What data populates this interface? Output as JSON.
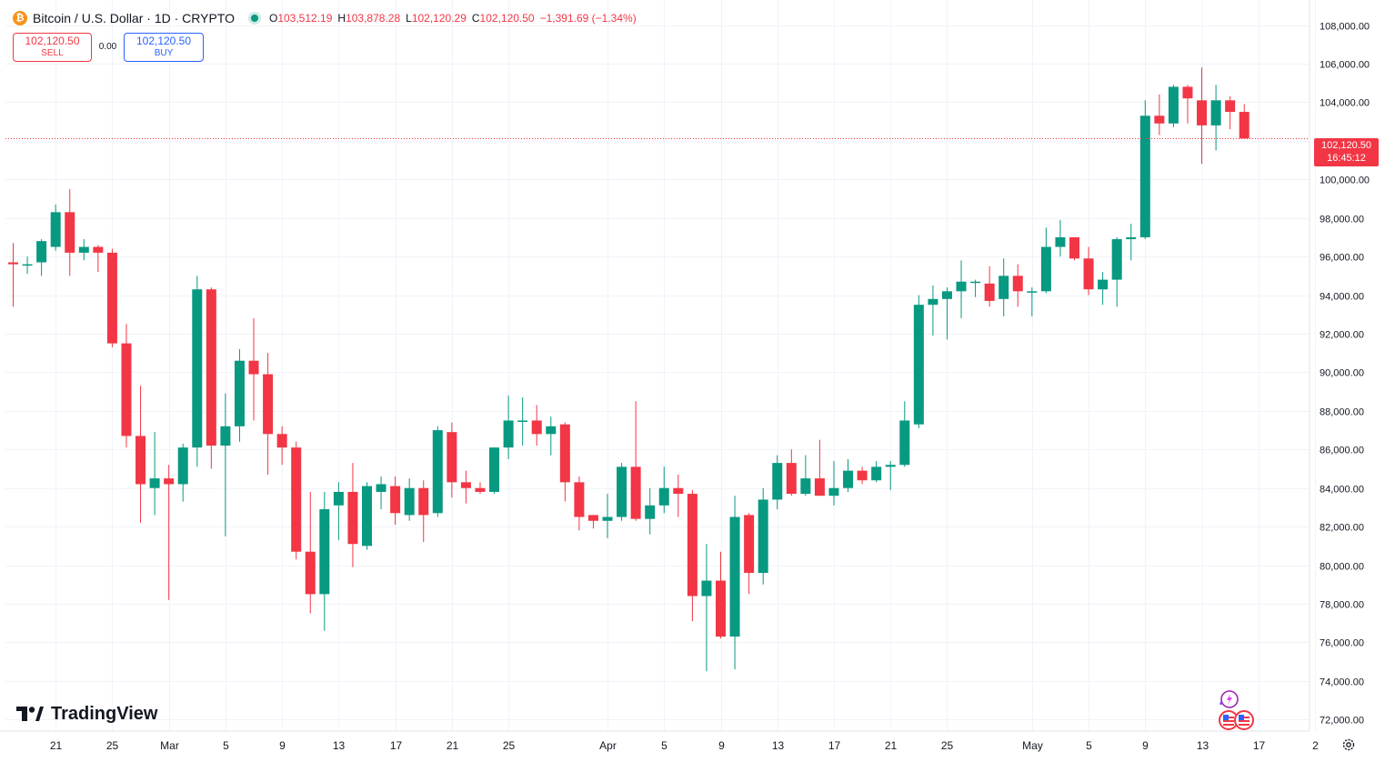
{
  "header": {
    "symbol_title": "Bitcoin / U.S. Dollar · 1D · CRYPTO",
    "btc_badge": "₿",
    "open_label": "O",
    "open_value": "103,512.19",
    "high_label": "H",
    "high_value": "103,878.28",
    "low_label": "L",
    "low_value": "102,120.29",
    "close_label": "C",
    "close_value": "102,120.50",
    "change_value": "−1,391.69 (−1.34%)"
  },
  "trade": {
    "sell_price": "102,120.50",
    "sell_label": "SELL",
    "spread": "0.00",
    "buy_price": "102,120.50",
    "buy_label": "BUY"
  },
  "price_tag": {
    "price": "102,120.50",
    "countdown": "16:45:12"
  },
  "branding": {
    "logo_text": "TradingView"
  },
  "colors": {
    "up": "#089981",
    "down": "#f23645",
    "grid": "#f0f3fa",
    "axis_text": "#131722",
    "price_line": "#f23645"
  },
  "chart_data": {
    "type": "candlestick",
    "title": "Bitcoin / U.S. Dollar · 1D · CRYPTO",
    "ylim": [
      71400,
      109300
    ],
    "y_ticks": [
      72000,
      74000,
      76000,
      78000,
      80000,
      82000,
      84000,
      86000,
      88000,
      90000,
      92000,
      94000,
      96000,
      98000,
      100000,
      102000,
      104000,
      106000,
      108000
    ],
    "x_labels": [
      {
        "index": 3,
        "label": "21"
      },
      {
        "index": 7,
        "label": "25"
      },
      {
        "index": 11,
        "label": "Mar"
      },
      {
        "index": 15,
        "label": "5"
      },
      {
        "index": 19,
        "label": "9"
      },
      {
        "index": 23,
        "label": "13"
      },
      {
        "index": 27,
        "label": "17"
      },
      {
        "index": 31,
        "label": "21"
      },
      {
        "index": 35,
        "label": "25"
      },
      {
        "index": 42,
        "label": "Apr"
      },
      {
        "index": 46,
        "label": "5"
      },
      {
        "index": 50,
        "label": "9"
      },
      {
        "index": 54,
        "label": "13"
      },
      {
        "index": 58,
        "label": "17"
      },
      {
        "index": 62,
        "label": "21"
      },
      {
        "index": 66,
        "label": "25"
      },
      {
        "index": 72,
        "label": "May"
      },
      {
        "index": 76,
        "label": "5"
      },
      {
        "index": 80,
        "label": "9"
      },
      {
        "index": 84,
        "label": "13"
      },
      {
        "index": 88,
        "label": "17"
      },
      {
        "index": 92,
        "label": "2"
      }
    ],
    "last_price": 102120.5,
    "candles": [
      {
        "o": 95700,
        "h": 96700,
        "l": 93400,
        "c": 95600
      },
      {
        "o": 95600,
        "h": 96000,
        "l": 95100,
        "c": 95600
      },
      {
        "o": 95700,
        "h": 96900,
        "l": 95000,
        "c": 96800
      },
      {
        "o": 96500,
        "h": 98700,
        "l": 96300,
        "c": 98300
      },
      {
        "o": 98300,
        "h": 99500,
        "l": 95000,
        "c": 96200
      },
      {
        "o": 96200,
        "h": 96900,
        "l": 95800,
        "c": 96500
      },
      {
        "o": 96500,
        "h": 96600,
        "l": 95200,
        "c": 96200
      },
      {
        "o": 96200,
        "h": 96400,
        "l": 91300,
        "c": 91500
      },
      {
        "o": 91500,
        "h": 92500,
        "l": 86100,
        "c": 86700
      },
      {
        "o": 86700,
        "h": 89300,
        "l": 82200,
        "c": 84200
      },
      {
        "o": 84000,
        "h": 86900,
        "l": 82600,
        "c": 84500
      },
      {
        "o": 84500,
        "h": 85200,
        "l": 78200,
        "c": 84200
      },
      {
        "o": 84200,
        "h": 86300,
        "l": 83300,
        "c": 86100
      },
      {
        "o": 86100,
        "h": 95000,
        "l": 85100,
        "c": 94300
      },
      {
        "o": 94300,
        "h": 94400,
        "l": 85000,
        "c": 86200
      },
      {
        "o": 86200,
        "h": 88900,
        "l": 81500,
        "c": 87200
      },
      {
        "o": 87200,
        "h": 91200,
        "l": 86400,
        "c": 90600
      },
      {
        "o": 90600,
        "h": 92800,
        "l": 87500,
        "c": 89900
      },
      {
        "o": 89900,
        "h": 91000,
        "l": 84700,
        "c": 86800
      },
      {
        "o": 86800,
        "h": 87200,
        "l": 85200,
        "c": 86100
      },
      {
        "o": 86100,
        "h": 86400,
        "l": 80300,
        "c": 80700
      },
      {
        "o": 80700,
        "h": 83800,
        "l": 77500,
        "c": 78500
      },
      {
        "o": 78500,
        "h": 83800,
        "l": 76600,
        "c": 82900
      },
      {
        "o": 83100,
        "h": 84300,
        "l": 81300,
        "c": 83800
      },
      {
        "o": 83800,
        "h": 85300,
        "l": 79900,
        "c": 81100
      },
      {
        "o": 81000,
        "h": 84300,
        "l": 80800,
        "c": 84100
      },
      {
        "o": 83800,
        "h": 84600,
        "l": 82900,
        "c": 84200
      },
      {
        "o": 84100,
        "h": 84600,
        "l": 82100,
        "c": 82700
      },
      {
        "o": 82600,
        "h": 84500,
        "l": 82300,
        "c": 84000
      },
      {
        "o": 84000,
        "h": 84400,
        "l": 81200,
        "c": 82600
      },
      {
        "o": 82700,
        "h": 87200,
        "l": 82500,
        "c": 87000
      },
      {
        "o": 86900,
        "h": 87400,
        "l": 83500,
        "c": 84300
      },
      {
        "o": 84300,
        "h": 84900,
        "l": 83200,
        "c": 84000
      },
      {
        "o": 84000,
        "h": 84300,
        "l": 83700,
        "c": 83800
      },
      {
        "o": 83800,
        "h": 86100,
        "l": 83700,
        "c": 86100
      },
      {
        "o": 86100,
        "h": 88800,
        "l": 85500,
        "c": 87500
      },
      {
        "o": 87500,
        "h": 88700,
        "l": 86200,
        "c": 87500
      },
      {
        "o": 87500,
        "h": 88300,
        "l": 86200,
        "c": 86800
      },
      {
        "o": 86800,
        "h": 87700,
        "l": 85700,
        "c": 87200
      },
      {
        "o": 87300,
        "h": 87400,
        "l": 83300,
        "c": 84300
      },
      {
        "o": 84300,
        "h": 84600,
        "l": 81800,
        "c": 82500
      },
      {
        "o": 82600,
        "h": 82600,
        "l": 81900,
        "c": 82300
      },
      {
        "o": 82300,
        "h": 83700,
        "l": 81400,
        "c": 82500
      },
      {
        "o": 82500,
        "h": 85300,
        "l": 82300,
        "c": 85100
      },
      {
        "o": 85100,
        "h": 88500,
        "l": 82300,
        "c": 82400
      },
      {
        "o": 82400,
        "h": 84000,
        "l": 81600,
        "c": 83100
      },
      {
        "o": 83100,
        "h": 85100,
        "l": 82700,
        "c": 84000
      },
      {
        "o": 84000,
        "h": 84700,
        "l": 82500,
        "c": 83700
      },
      {
        "o": 83700,
        "h": 83900,
        "l": 77100,
        "c": 78400
      },
      {
        "o": 78400,
        "h": 81100,
        "l": 74500,
        "c": 79200
      },
      {
        "o": 79200,
        "h": 80700,
        "l": 76200,
        "c": 76300
      },
      {
        "o": 76300,
        "h": 83600,
        "l": 74600,
        "c": 82500
      },
      {
        "o": 82600,
        "h": 82700,
        "l": 78500,
        "c": 79600
      },
      {
        "o": 79600,
        "h": 84000,
        "l": 79000,
        "c": 83400
      },
      {
        "o": 83400,
        "h": 85700,
        "l": 82900,
        "c": 85300
      },
      {
        "o": 85300,
        "h": 86000,
        "l": 83600,
        "c": 83700
      },
      {
        "o": 83700,
        "h": 85700,
        "l": 83600,
        "c": 84500
      },
      {
        "o": 84500,
        "h": 86500,
        "l": 83600,
        "c": 83600
      },
      {
        "o": 83600,
        "h": 85400,
        "l": 83100,
        "c": 84000
      },
      {
        "o": 84000,
        "h": 85500,
        "l": 83800,
        "c": 84900
      },
      {
        "o": 84900,
        "h": 85100,
        "l": 84200,
        "c": 84400
      },
      {
        "o": 84400,
        "h": 85400,
        "l": 84300,
        "c": 85100
      },
      {
        "o": 85100,
        "h": 85400,
        "l": 83900,
        "c": 85200
      },
      {
        "o": 85200,
        "h": 88500,
        "l": 85100,
        "c": 87500
      },
      {
        "o": 87300,
        "h": 94000,
        "l": 87100,
        "c": 93500
      },
      {
        "o": 93500,
        "h": 94500,
        "l": 91900,
        "c": 93800
      },
      {
        "o": 93800,
        "h": 94400,
        "l": 91700,
        "c": 94200
      },
      {
        "o": 94200,
        "h": 95800,
        "l": 92800,
        "c": 94700
      },
      {
        "o": 94700,
        "h": 94800,
        "l": 93900,
        "c": 94700
      },
      {
        "o": 94600,
        "h": 95500,
        "l": 93400,
        "c": 93700
      },
      {
        "o": 93800,
        "h": 95900,
        "l": 92900,
        "c": 95000
      },
      {
        "o": 95000,
        "h": 95600,
        "l": 93400,
        "c": 94200
      },
      {
        "o": 94200,
        "h": 94400,
        "l": 92900,
        "c": 94200
      },
      {
        "o": 94200,
        "h": 97500,
        "l": 94100,
        "c": 96500
      },
      {
        "o": 96500,
        "h": 97900,
        "l": 96000,
        "c": 97000
      },
      {
        "o": 97000,
        "h": 97000,
        "l": 95800,
        "c": 95900
      },
      {
        "o": 95900,
        "h": 96500,
        "l": 94000,
        "c": 94300
      },
      {
        "o": 94300,
        "h": 95200,
        "l": 93500,
        "c": 94800
      },
      {
        "o": 94800,
        "h": 97000,
        "l": 93400,
        "c": 96900
      },
      {
        "o": 96900,
        "h": 97700,
        "l": 95800,
        "c": 97000
      },
      {
        "o": 97000,
        "h": 104100,
        "l": 96900,
        "c": 103300
      },
      {
        "o": 103300,
        "h": 104400,
        "l": 102300,
        "c": 102900
      },
      {
        "o": 102900,
        "h": 104900,
        "l": 102700,
        "c": 104800
      },
      {
        "o": 104800,
        "h": 104900,
        "l": 102900,
        "c": 104200
      },
      {
        "o": 104100,
        "h": 105800,
        "l": 100800,
        "c": 102800
      },
      {
        "o": 102800,
        "h": 104900,
        "l": 101500,
        "c": 104100
      },
      {
        "o": 104100,
        "h": 104300,
        "l": 102600,
        "c": 103500
      },
      {
        "o": 103500,
        "h": 103900,
        "l": 102100,
        "c": 102120.5
      }
    ]
  }
}
